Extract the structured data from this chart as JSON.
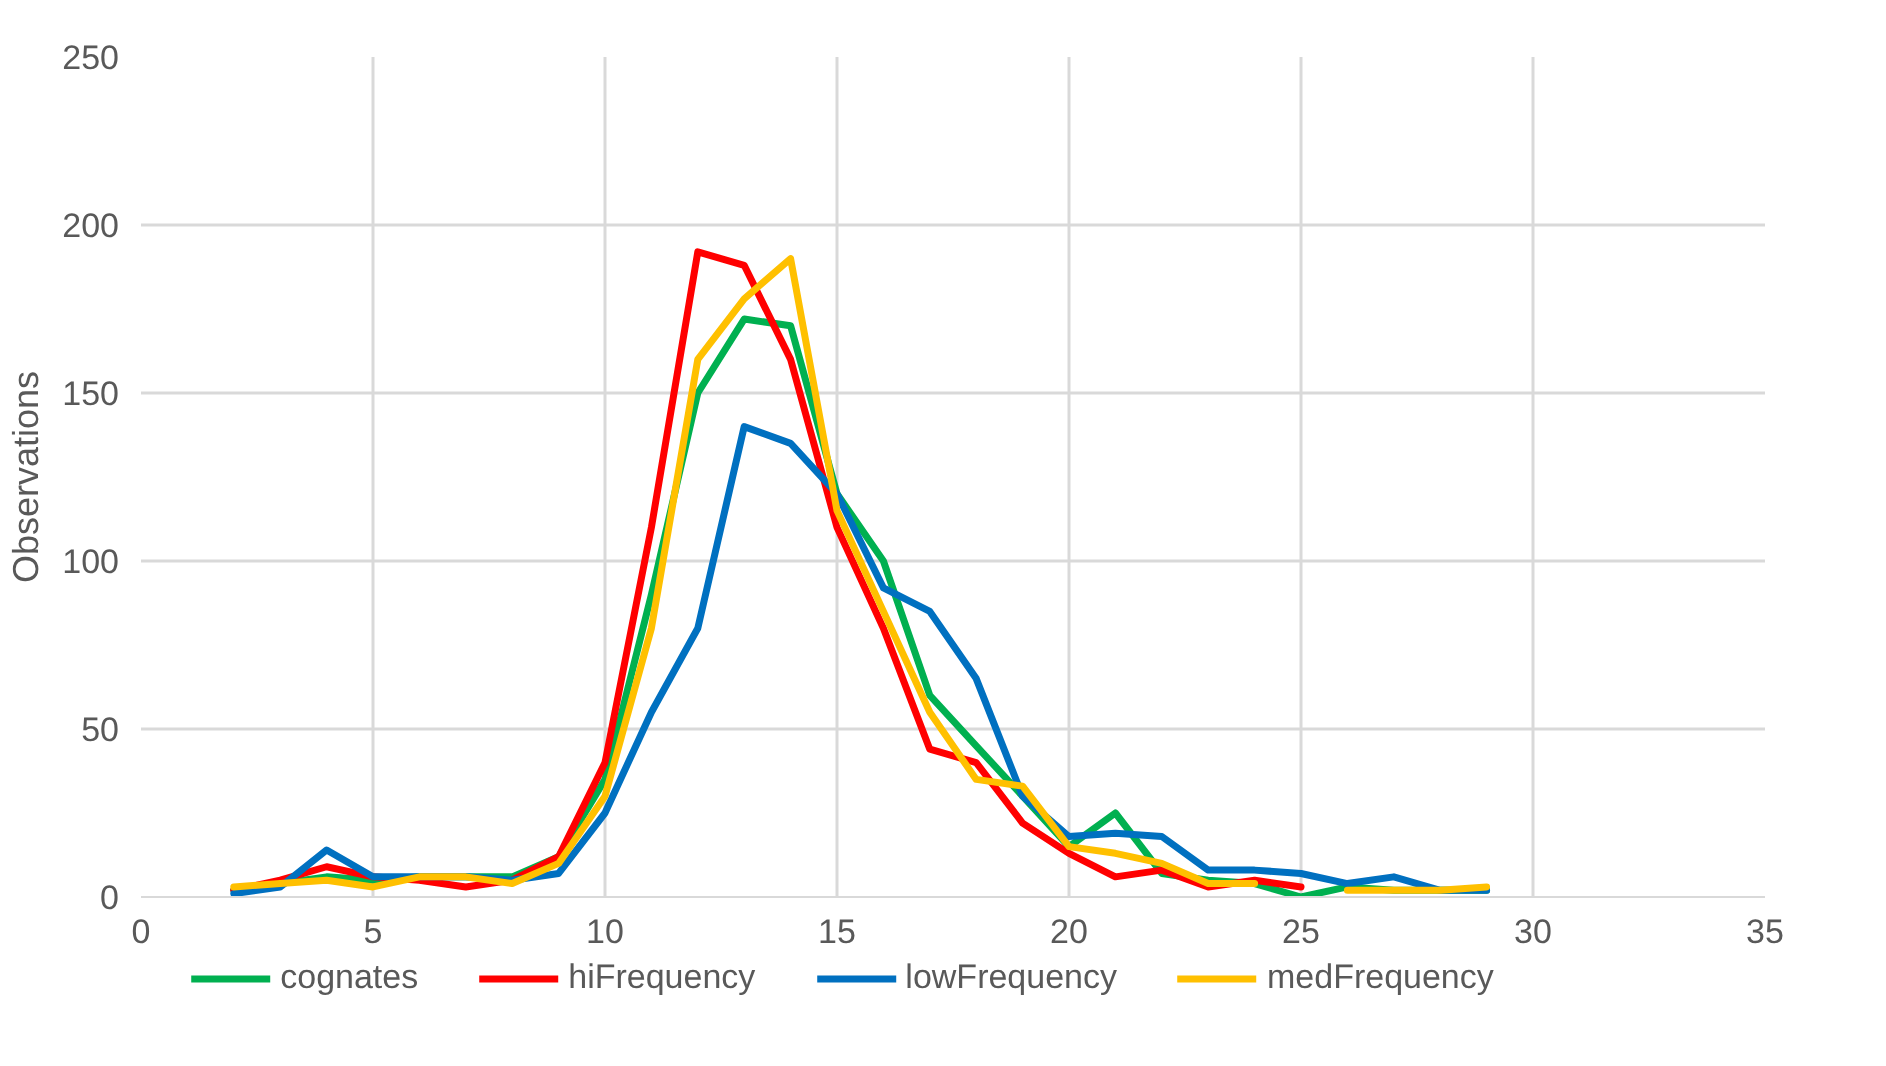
{
  "chart_data": {
    "type": "line",
    "ylabel": "Observations",
    "x": [
      2,
      3,
      4,
      5,
      6,
      7,
      8,
      9,
      10,
      11,
      12,
      13,
      14,
      15,
      16,
      17,
      18,
      19,
      20,
      21,
      22,
      23,
      24,
      25,
      26,
      27,
      28,
      29
    ],
    "xlim": [
      0,
      35
    ],
    "xticks": [
      0,
      5,
      10,
      15,
      20,
      25,
      30,
      35
    ],
    "ylim": [
      0,
      250
    ],
    "yticks": [
      0,
      50,
      100,
      150,
      200,
      250
    ],
    "grid": true,
    "legend": "bottom",
    "line_style": "solid",
    "marker": "none",
    "series": [
      {
        "name": "cognates",
        "color": "#00b050",
        "values": [
          2,
          4,
          6,
          5,
          6,
          6,
          6,
          12,
          35,
          90,
          150,
          172,
          170,
          120,
          100,
          60,
          45,
          30,
          15,
          25,
          7,
          5,
          4,
          0,
          3,
          2,
          2,
          2
        ]
      },
      {
        "name": "hiFrequency",
        "color": "#ff0000",
        "values": [
          2,
          5,
          9,
          6,
          5,
          3,
          5,
          12,
          40,
          110,
          192,
          188,
          160,
          110,
          80,
          44,
          40,
          22,
          13,
          6,
          8,
          3,
          5,
          3,
          null,
          null,
          null,
          null
        ]
      },
      {
        "name": "lowFrequency",
        "color": "#0070c0",
        "values": [
          1,
          3,
          14,
          6,
          6,
          6,
          5,
          7,
          25,
          55,
          80,
          140,
          135,
          120,
          92,
          85,
          65,
          30,
          18,
          19,
          18,
          8,
          8,
          7,
          4,
          6,
          2,
          2
        ]
      },
      {
        "name": "medFrequency",
        "color": "#ffc000",
        "values": [
          3,
          4,
          5,
          3,
          6,
          6,
          4,
          10,
          30,
          80,
          160,
          178,
          190,
          115,
          85,
          55,
          35,
          33,
          15,
          13,
          10,
          4,
          4,
          null,
          2,
          2,
          2,
          3
        ]
      }
    ]
  }
}
